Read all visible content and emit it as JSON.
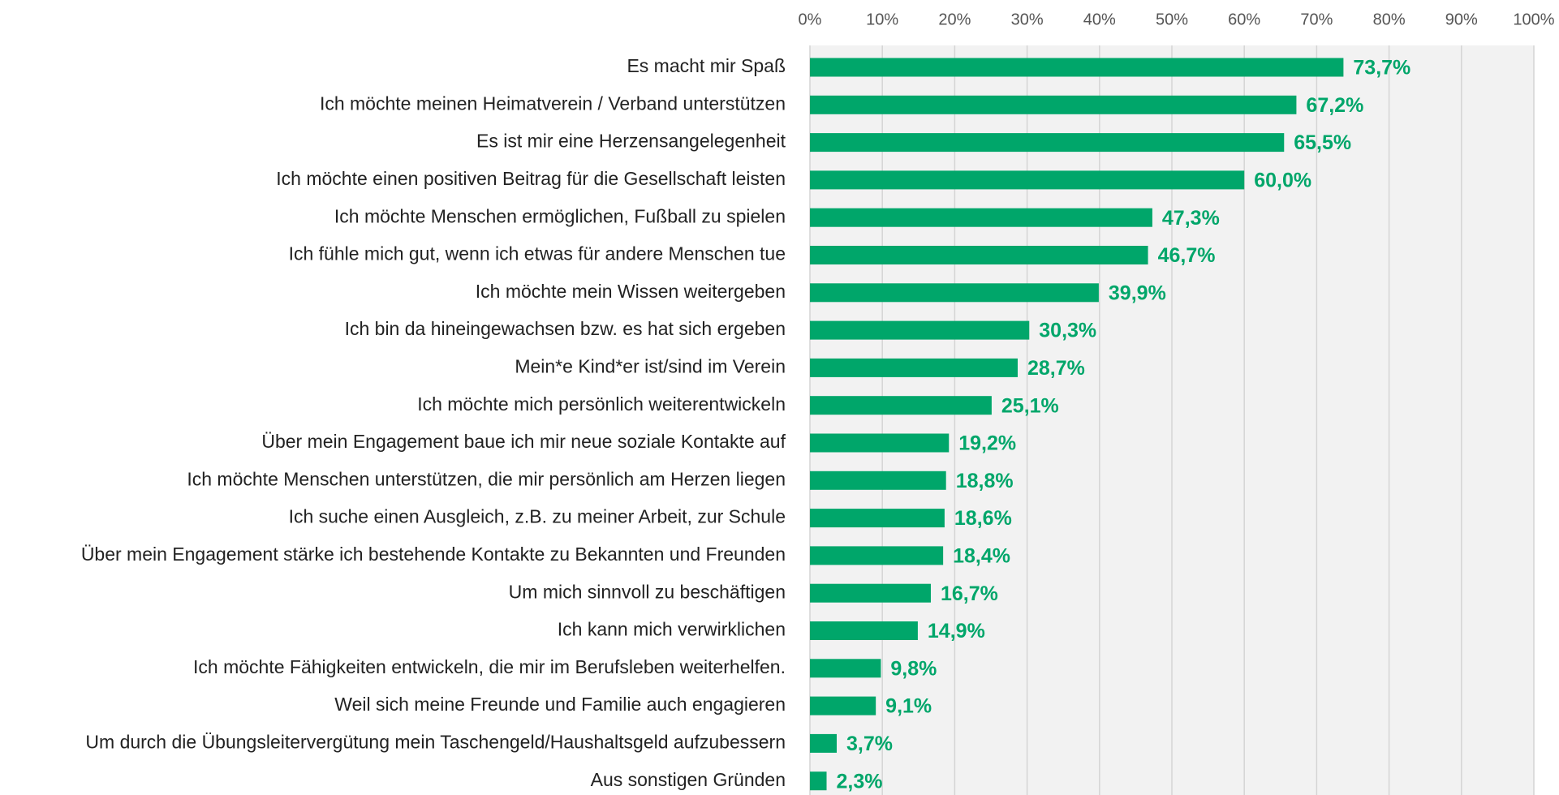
{
  "chart_data": {
    "type": "bar",
    "orientation": "horizontal",
    "categories": [
      "Es macht mir Spaß",
      "Ich möchte meinen Heimatverein / Verband unterstützen",
      "Es ist mir eine Herzensangelegenheit",
      "Ich möchte einen positiven Beitrag für die Gesellschaft leisten",
      "Ich möchte Menschen ermöglichen, Fußball zu spielen",
      "Ich fühle mich gut, wenn ich etwas für andere Menschen tue",
      "Ich möchte mein Wissen weitergeben",
      "Ich bin da hineingewachsen bzw. es hat sich ergeben",
      "Mein*e Kind*er ist/sind im Verein",
      "Ich möchte mich persönlich weiterentwickeln",
      "Über mein Engagement baue ich mir neue soziale Kontakte auf",
      "Ich möchte Menschen unterstützen, die mir persönlich am Herzen liegen",
      "Ich suche einen Ausgleich, z.B. zu meiner Arbeit, zur Schule",
      "Über mein Engagement stärke ich bestehende Kontakte zu Bekannten und Freunden",
      "Um mich sinnvoll zu beschäftigen",
      "Ich kann mich verwirklichen",
      "Ich möchte Fähigkeiten entwickeln, die mir im Berufsleben weiterhelfen.",
      "Weil sich meine Freunde und Familie auch engagieren",
      "Um durch die Übungsleitervergütung mein Taschengeld/Haushaltsgeld aufzubessern",
      "Aus sonstigen Gründen"
    ],
    "values": [
      73.7,
      67.2,
      65.5,
      60.0,
      47.3,
      46.7,
      39.9,
      30.3,
      28.7,
      25.1,
      19.2,
      18.8,
      18.6,
      18.4,
      16.7,
      14.9,
      9.8,
      9.1,
      3.7,
      2.3
    ],
    "value_labels": [
      "73,7%",
      "67,2%",
      "65,5%",
      "60,0%",
      "47,3%",
      "46,7%",
      "39,9%",
      "30,3%",
      "28,7%",
      "25,1%",
      "19,2%",
      "18,8%",
      "18,6%",
      "18,4%",
      "16,7%",
      "14,9%",
      "9,8%",
      "9,1%",
      "3,7%",
      "2,3%"
    ],
    "color": "#00a66a",
    "xlim": [
      0,
      100
    ],
    "xticks": [
      {
        "value": 0,
        "label": "0%"
      },
      {
        "value": 10,
        "label": "10%"
      },
      {
        "value": 20,
        "label": "20%"
      },
      {
        "value": 30,
        "label": "30%"
      },
      {
        "value": 40,
        "label": "40%"
      },
      {
        "value": 50,
        "label": "50%"
      },
      {
        "value": 60,
        "label": "60%"
      },
      {
        "value": 70,
        "label": "70%"
      },
      {
        "value": 80,
        "label": "80%"
      },
      {
        "value": 90,
        "label": "90%"
      },
      {
        "value": 100,
        "label": "100%"
      }
    ],
    "grid": true
  }
}
